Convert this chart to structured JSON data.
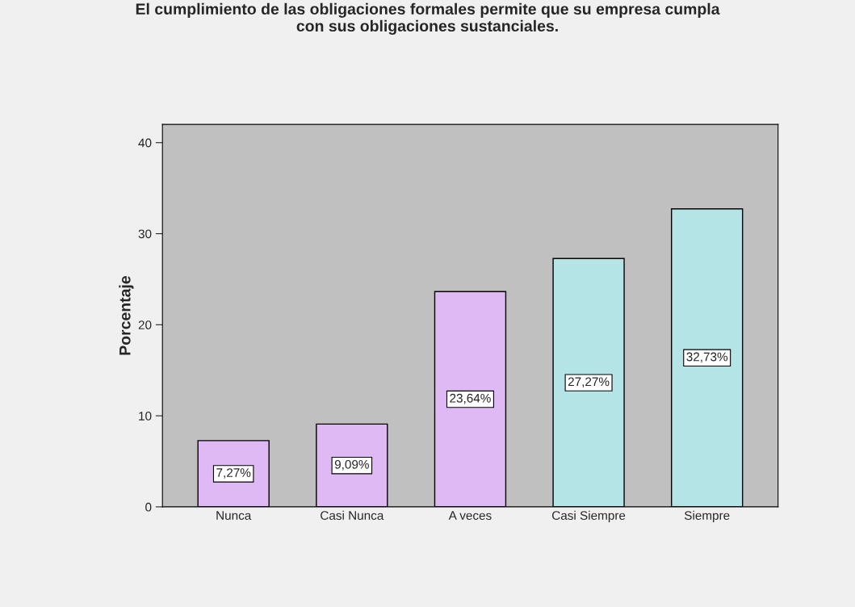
{
  "chart_data": {
    "type": "bar",
    "title": "El cumplimiento de las obligaciones formales permite que su empresa cumpla\ncon sus obligaciones sustanciales.",
    "ylabel": "Porcentaje",
    "categories": [
      "Nunca",
      "Casi Nunca",
      "A veces",
      "Casi Siempre",
      "Siempre"
    ],
    "values": [
      7.27,
      9.09,
      23.64,
      27.27,
      32.73
    ],
    "colors": [
      "#dfb9f3",
      "#dfb9f3",
      "#dfb9f3",
      "#b4e4e6",
      "#b4e4e6"
    ],
    "value_labels": [
      "7,27%",
      "9,09%",
      "23,64%",
      "27,27%",
      "32,73%"
    ],
    "ylim": [
      0,
      42
    ],
    "yticks": [
      0,
      10,
      20,
      30,
      40
    ],
    "grid": false,
    "legend": false
  }
}
